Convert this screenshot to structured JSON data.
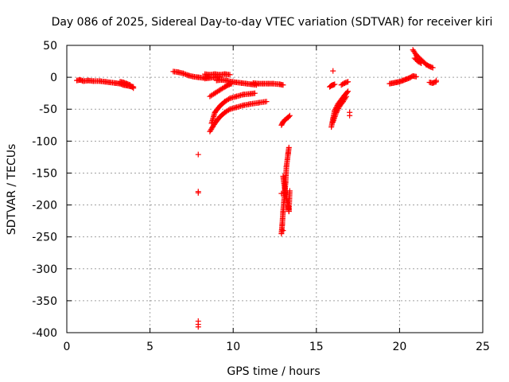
{
  "chart_data": {
    "type": "scatter",
    "title": "Day 086 of 2025, Sidereal Day-to-day VTEC variation (SDTVAR) for receiver kiri",
    "xlabel": "GPS time / hours",
    "ylabel": "SDTVAR / TECUs",
    "xlim": [
      0,
      25
    ],
    "ylim": [
      -400,
      50
    ],
    "xticks": [
      0,
      5,
      10,
      15,
      20,
      25
    ],
    "yticks": [
      50,
      0,
      -50,
      -100,
      -150,
      -200,
      -250,
      -300,
      -350,
      -400
    ],
    "grid": true,
    "marker": "+",
    "color": "#ff0000",
    "series": [
      {
        "segments": [
          [
            [
              0.6,
              -5
            ],
            [
              0.8,
              -4
            ],
            [
              1.0,
              -6
            ],
            [
              1.3,
              -5
            ],
            [
              1.6,
              -6
            ],
            [
              2.0,
              -6
            ],
            [
              2.3,
              -7
            ],
            [
              2.6,
              -8
            ],
            [
              2.9,
              -9
            ],
            [
              3.2,
              -10
            ],
            [
              3.4,
              -12
            ],
            [
              3.6,
              -13
            ],
            [
              3.8,
              -14
            ],
            [
              4.0,
              -15
            ]
          ],
          [
            [
              3.2,
              -7
            ],
            [
              3.4,
              -8
            ],
            [
              3.6,
              -10
            ],
            [
              3.8,
              -12
            ],
            [
              4.0,
              -17
            ]
          ],
          [
            [
              6.4,
              9
            ],
            [
              6.7,
              8
            ],
            [
              7.0,
              6
            ],
            [
              7.3,
              3
            ],
            [
              7.6,
              1
            ],
            [
              7.9,
              0
            ],
            [
              8.2,
              -1
            ],
            [
              8.5,
              1
            ]
          ],
          [
            [
              8.3,
              5
            ],
            [
              8.6,
              4
            ],
            [
              8.9,
              5
            ],
            [
              9.2,
              4
            ],
            [
              9.5,
              5
            ],
            [
              9.8,
              4
            ]
          ],
          [
            [
              8.3,
              -2
            ],
            [
              8.6,
              -1
            ],
            [
              8.9,
              0
            ],
            [
              9.2,
              1
            ]
          ],
          [
            [
              9.0,
              -5
            ],
            [
              9.3,
              -4
            ],
            [
              9.6,
              -5
            ],
            [
              9.9,
              -7
            ],
            [
              10.2,
              -8
            ],
            [
              10.5,
              -9
            ],
            [
              10.8,
              -10
            ],
            [
              11.1,
              -11
            ],
            [
              11.4,
              -12
            ]
          ],
          [
            [
              11.2,
              -9
            ],
            [
              11.5,
              -10
            ],
            [
              11.8,
              -10
            ],
            [
              12.1,
              -10
            ],
            [
              12.4,
              -10
            ],
            [
              12.8,
              -11
            ],
            [
              13.0,
              -12
            ]
          ],
          [
            [
              8.6,
              -30
            ],
            [
              8.9,
              -25
            ],
            [
              9.2,
              -20
            ],
            [
              9.5,
              -15
            ],
            [
              9.7,
              -12
            ],
            [
              9.9,
              -10
            ]
          ],
          [
            [
              8.7,
              -72
            ],
            [
              8.9,
              -55
            ],
            [
              9.2,
              -45
            ],
            [
              9.5,
              -38
            ],
            [
              9.8,
              -33
            ],
            [
              10.2,
              -30
            ],
            [
              10.6,
              -27
            ],
            [
              11.0,
              -26
            ],
            [
              11.3,
              -25
            ]
          ],
          [
            [
              8.6,
              -85
            ],
            [
              8.9,
              -72
            ],
            [
              9.2,
              -62
            ],
            [
              9.5,
              -55
            ],
            [
              9.8,
              -50
            ],
            [
              10.2,
              -47
            ],
            [
              10.6,
              -44
            ],
            [
              11.0,
              -42
            ],
            [
              11.5,
              -40
            ],
            [
              12.0,
              -38
            ]
          ],
          [
            [
              12.9,
              -75
            ],
            [
              13.0,
              -70
            ],
            [
              13.1,
              -67
            ],
            [
              13.3,
              -63
            ],
            [
              13.4,
              -60
            ]
          ],
          [
            [
              12.9,
              -245
            ],
            [
              12.95,
              -230
            ],
            [
              13.0,
              -210
            ],
            [
              13.1,
              -180
            ],
            [
              13.15,
              -165
            ],
            [
              13.2,
              -140
            ],
            [
              13.3,
              -120
            ],
            [
              13.35,
              -110
            ]
          ],
          [
            [
              13.0,
              -155
            ],
            [
              13.1,
              -175
            ],
            [
              13.2,
              -190
            ],
            [
              13.3,
              -200
            ],
            [
              13.35,
              -210
            ],
            [
              13.4,
              -178
            ]
          ],
          [
            [
              15.8,
              -15
            ],
            [
              15.9,
              -13
            ],
            [
              16.0,
              -12
            ],
            [
              16.1,
              -11
            ]
          ],
          [
            [
              15.9,
              -78
            ],
            [
              16.0,
              -65
            ],
            [
              16.1,
              -52
            ],
            [
              16.3,
              -42
            ],
            [
              16.5,
              -35
            ],
            [
              16.7,
              -28
            ],
            [
              16.9,
              -22
            ]
          ],
          [
            [
              16.0,
              -70
            ],
            [
              16.2,
              -55
            ],
            [
              16.4,
              -45
            ],
            [
              16.6,
              -38
            ],
            [
              16.8,
              -30
            ]
          ],
          [
            [
              16.5,
              -12
            ],
            [
              16.7,
              -9
            ],
            [
              16.9,
              -7
            ]
          ],
          [
            [
              19.4,
              -10
            ],
            [
              19.6,
              -9
            ],
            [
              19.8,
              -8
            ],
            [
              20.0,
              -7
            ],
            [
              20.2,
              -5
            ],
            [
              20.4,
              -3
            ],
            [
              20.6,
              -1
            ],
            [
              20.8,
              2
            ],
            [
              21.0,
              1
            ]
          ],
          [
            [
              20.8,
              43
            ],
            [
              21.0,
              35
            ],
            [
              21.2,
              30
            ],
            [
              21.4,
              25
            ],
            [
              21.6,
              20
            ],
            [
              21.8,
              17
            ],
            [
              22.0,
              15
            ]
          ],
          [
            [
              20.9,
              30
            ],
            [
              21.1,
              25
            ],
            [
              21.3,
              22
            ]
          ],
          [
            [
              21.8,
              -8
            ],
            [
              22.0,
              -9
            ],
            [
              22.2,
              -7
            ]
          ]
        ]
      },
      {
        "points": [
          [
            7.9,
            -121
          ],
          [
            7.9,
            -179
          ],
          [
            7.9,
            -181
          ],
          [
            7.9,
            -382
          ],
          [
            7.9,
            -387
          ],
          [
            7.9,
            -391
          ],
          [
            16.0,
            10
          ],
          [
            12.9,
            -182
          ],
          [
            17.0,
            -55
          ],
          [
            17.0,
            -60
          ],
          [
            22.2,
            -5
          ],
          [
            13.0,
            -240
          ]
        ]
      }
    ]
  }
}
